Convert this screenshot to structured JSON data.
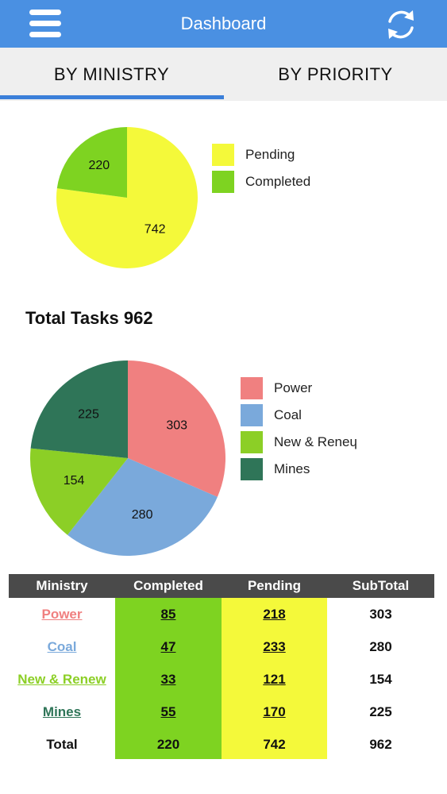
{
  "header": {
    "title": "Dashboard",
    "menu_icon": "hamburger-menu-icon",
    "refresh_icon": "refresh-icon"
  },
  "tabs": [
    {
      "label": "BY MINISTRY",
      "active": true
    },
    {
      "label": "BY PRIORITY",
      "active": false
    }
  ],
  "colors": {
    "header": "#4a90e2",
    "tab_indicator": "#3b7fd9",
    "pending": "#f4f93a",
    "completed": "#7ed321",
    "power": "#f08080",
    "coal": "#7aa9db",
    "new_renew": "#8ccf26",
    "mines": "#2f7558"
  },
  "section": {
    "total_title": "Total Tasks 962"
  },
  "chart_data": [
    {
      "type": "pie",
      "slices": [
        {
          "label": "Pending",
          "value": 742,
          "color": "#f4f93a"
        },
        {
          "label": "Completed",
          "value": 220,
          "color": "#7ed321"
        }
      ],
      "legend": "right"
    },
    {
      "type": "pie",
      "slices": [
        {
          "label": "Power",
          "value": 303,
          "color": "#f08080"
        },
        {
          "label": "Coal",
          "value": 280,
          "color": "#7aa9db"
        },
        {
          "label": "New & Renew",
          "value": 154,
          "color": "#8ccf26"
        },
        {
          "label": "Mines",
          "value": 225,
          "color": "#2f7558"
        }
      ],
      "legend_labels": [
        "Power",
        "Coal",
        "New & Reneɥ",
        "Mines"
      ],
      "legend": "right"
    }
  ],
  "table": {
    "headers": [
      "Ministry",
      "Completed",
      "Pending",
      "SubTotal"
    ],
    "rows": [
      {
        "ministry": "Power",
        "ministry_color": "#f08080",
        "completed": "85",
        "pending": "218",
        "subtotal": "303"
      },
      {
        "ministry": "Coal",
        "ministry_color": "#7aa9db",
        "completed": "47",
        "pending": "233",
        "subtotal": "280"
      },
      {
        "ministry": "New & Renew",
        "ministry_color": "#8ccf26",
        "completed": "33",
        "pending": "121",
        "subtotal": "154"
      },
      {
        "ministry": "Mines",
        "ministry_color": "#2f7558",
        "completed": "55",
        "pending": "170",
        "subtotal": "225"
      }
    ],
    "total": {
      "label": "Total",
      "completed": "220",
      "pending": "742",
      "subtotal": "962"
    }
  }
}
